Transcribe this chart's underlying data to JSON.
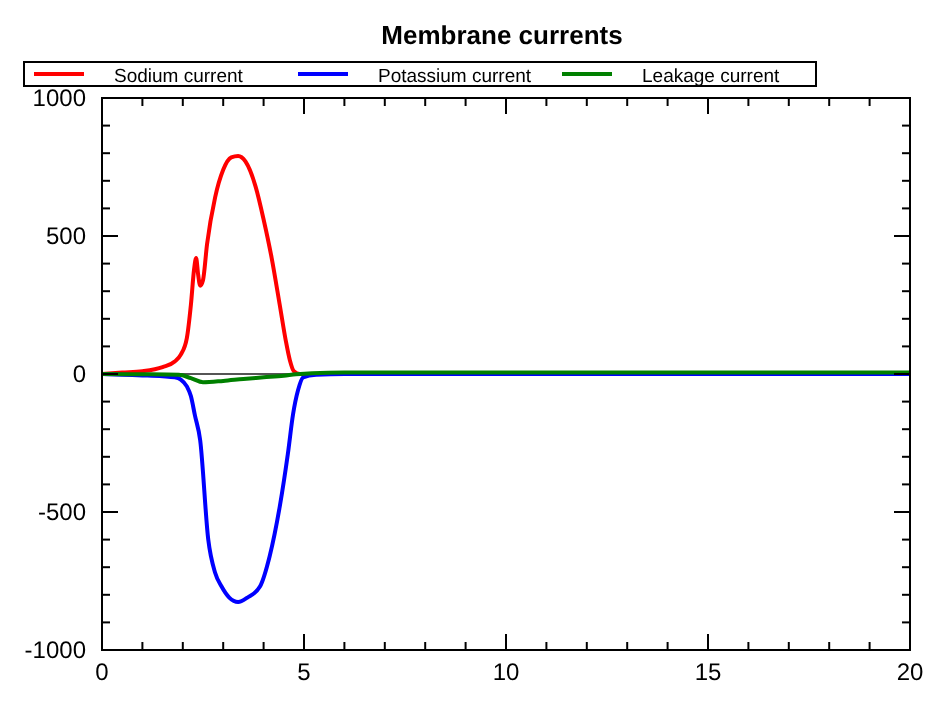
{
  "chart_data": {
    "type": "line",
    "title": "Membrane currents",
    "xlim": [
      0,
      20
    ],
    "ylim": [
      -1000,
      1000
    ],
    "xticks": [
      0,
      5,
      10,
      15,
      20
    ],
    "yticks": [
      -1000,
      -500,
      0,
      500,
      1000
    ],
    "grid": false,
    "legend": "top",
    "line_style": "solid",
    "marker": "none",
    "ref_lines": [
      {
        "axis": "y",
        "value": 0,
        "color": "#555555"
      }
    ],
    "series": [
      {
        "name": "Sodium current",
        "color": "#ff0000",
        "x": [
          0,
          0.5,
          1,
          1.5,
          1.8,
          1.95,
          2.1,
          2.2,
          2.28,
          2.33,
          2.38,
          2.43,
          2.5,
          2.6,
          2.8,
          3,
          3.2,
          3.37,
          3.55,
          3.8,
          4,
          4.2,
          4.4,
          4.55,
          4.65,
          4.75,
          4.9,
          5.5
        ],
        "values": [
          0,
          5,
          10,
          25,
          45,
          70,
          130,
          250,
          380,
          420,
          360,
          320,
          340,
          470,
          640,
          740,
          785,
          790,
          770,
          680,
          560,
          420,
          250,
          120,
          50,
          10,
          0,
          0
        ]
      },
      {
        "name": "Potassium current",
        "color": "#0000ff",
        "x": [
          0,
          0.5,
          1,
          1.5,
          1.8,
          1.95,
          2.1,
          2.2,
          2.3,
          2.43,
          2.63,
          2.8,
          2.96,
          3.15,
          3.37,
          3.6,
          3.91,
          4.15,
          4.4,
          4.6,
          4.73,
          4.85,
          4.98,
          5.3,
          6,
          10,
          15,
          20
        ],
        "values": [
          0,
          -3,
          -5,
          -8,
          -12,
          -20,
          -45,
          -80,
          -150,
          -240,
          -600,
          -720,
          -770,
          -810,
          -826,
          -810,
          -770,
          -660,
          -480,
          -290,
          -145,
          -60,
          -12,
          -3,
          0,
          0,
          0,
          0
        ]
      },
      {
        "name": "Leakage current",
        "color": "#008000",
        "x": [
          0,
          1,
          1.9,
          2.2,
          2.5,
          3,
          3.5,
          4,
          4.5,
          4.8,
          5.2,
          6,
          10,
          15,
          20
        ],
        "values": [
          0,
          -1,
          -3,
          -15,
          -30,
          -25,
          -18,
          -12,
          -6,
          -1,
          3,
          5,
          5,
          5,
          5
        ]
      }
    ]
  }
}
